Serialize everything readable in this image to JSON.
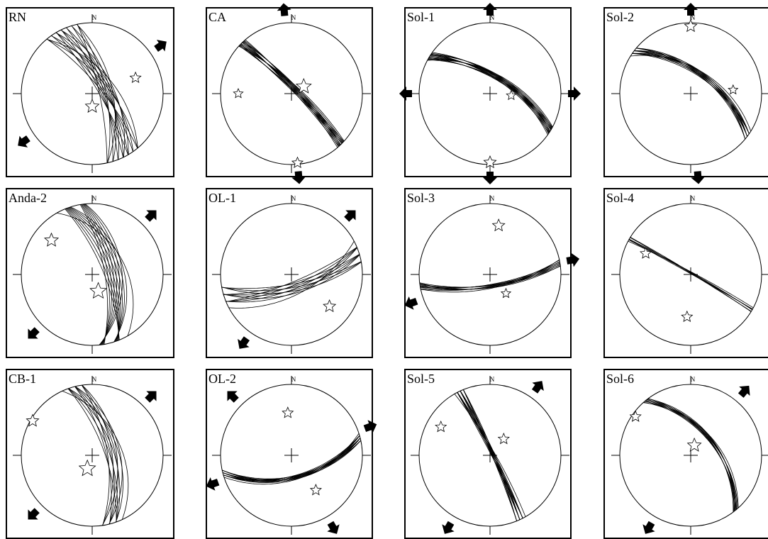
{
  "north_label": "N",
  "panels": [
    {
      "label": "RN"
    },
    {
      "label": "CA"
    },
    {
      "label": "Sol-1"
    },
    {
      "label": "Sol-2"
    },
    {
      "label": "Anda-2"
    },
    {
      "label": "OL-1"
    },
    {
      "label": "Sol-3"
    },
    {
      "label": "Sol-4"
    },
    {
      "label": "CB-1"
    },
    {
      "label": "OL-2"
    },
    {
      "label": "Sol-5"
    },
    {
      "label": "Sol-6"
    }
  ]
}
